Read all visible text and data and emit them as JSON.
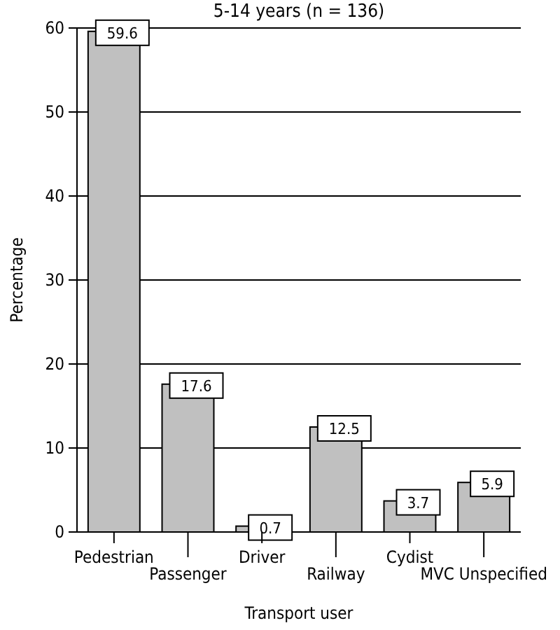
{
  "chart_data": {
    "type": "bar",
    "title": "5-14 years (n = 136)",
    "xlabel": "Transport user",
    "ylabel": "Percentage",
    "categories": [
      "Pedestrian",
      "Passenger",
      "Driver",
      "Railway",
      "Cydist",
      "MVC Unspecified"
    ],
    "values": [
      59.6,
      17.6,
      0.7,
      12.5,
      3.7,
      5.9
    ],
    "color": "#c0c0c0",
    "data_labels": true,
    "ylim": [
      0,
      60
    ],
    "yticks": [
      0,
      10,
      20,
      30,
      40,
      50,
      60
    ],
    "grid": "y"
  }
}
